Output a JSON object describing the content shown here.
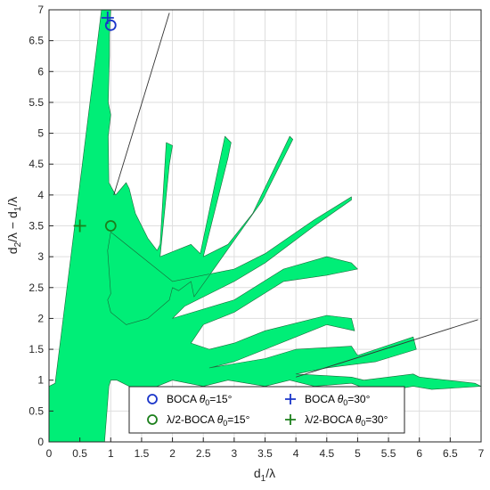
{
  "chart_data": {
    "type": "scatter",
    "xlabel": {
      "main": "d",
      "sub": "1",
      "tail": "/λ"
    },
    "ylabel": {
      "p1": "d",
      "s1": "2",
      "p2": "/λ − d",
      "s2": "1",
      "p3": "/λ"
    },
    "xlim": [
      0,
      7
    ],
    "ylim": [
      0,
      7
    ],
    "xticks": [
      "0",
      "0.5",
      "1",
      "1.5",
      "2",
      "2.5",
      "3",
      "3.5",
      "4",
      "4.5",
      "5",
      "5.5",
      "6",
      "6.5",
      "7"
    ],
    "yticks": [
      "0",
      "0.5",
      "1",
      "1.5",
      "2",
      "2.5",
      "3",
      "3.5",
      "4",
      "4.5",
      "5",
      "5.5",
      "6",
      "6.5",
      "7"
    ],
    "grid": true,
    "region_color": "#00ee77",
    "region_edge_color": "#1a6b3a",
    "feasible_region": [
      [
        0,
        0
      ],
      [
        0,
        0.9
      ],
      [
        0.1,
        0.95
      ],
      [
        0.85,
        7
      ],
      [
        1.0,
        7
      ],
      [
        0.98,
        6.6
      ],
      [
        0.98,
        6.25
      ],
      [
        0.97,
        5.9
      ],
      [
        0.96,
        5.5
      ],
      [
        1.0,
        5.3
      ],
      [
        0.96,
        4.95
      ],
      [
        0.97,
        4.2
      ],
      [
        1.08,
        4.0
      ],
      [
        1.25,
        4.2
      ],
      [
        1.3,
        4.1
      ],
      [
        1.35,
        3.9
      ],
      [
        1.4,
        3.7
      ],
      [
        1.6,
        3.3
      ],
      [
        1.75,
        3.1
      ],
      [
        1.8,
        3.2
      ],
      [
        1.9,
        4.85
      ],
      [
        2.0,
        4.8
      ],
      [
        1.95,
        4.5
      ],
      [
        1.8,
        3.0
      ],
      [
        2.3,
        3.2
      ],
      [
        2.45,
        3.05
      ],
      [
        2.85,
        4.95
      ],
      [
        2.95,
        4.85
      ],
      [
        2.9,
        4.6
      ],
      [
        2.5,
        3.0
      ],
      [
        2.9,
        3.2
      ],
      [
        3.3,
        3.7
      ],
      [
        3.9,
        4.95
      ],
      [
        3.95,
        4.9
      ],
      [
        3.45,
        3.9
      ],
      [
        2.6,
        2.7
      ],
      [
        2.35,
        2.35
      ],
      [
        2.3,
        2.6
      ],
      [
        2.1,
        2.45
      ],
      [
        2.0,
        2.5
      ],
      [
        1.95,
        2.3
      ],
      [
        1.6,
        2.0
      ],
      [
        1.25,
        1.9
      ],
      [
        1.0,
        2.1
      ],
      [
        0.95,
        2.3
      ],
      [
        1.0,
        2.4
      ],
      [
        0.95,
        3.1
      ],
      [
        1.0,
        3.4
      ],
      [
        2.0,
        2.6
      ],
      [
        3.0,
        2.8
      ],
      [
        3.5,
        3.05
      ],
      [
        4.3,
        3.6
      ],
      [
        4.9,
        3.97
      ],
      [
        4.9,
        3.92
      ],
      [
        4.3,
        3.5
      ],
      [
        3.5,
        2.9
      ],
      [
        3.0,
        2.6
      ],
      [
        2.2,
        2.2
      ],
      [
        2.0,
        2.0
      ],
      [
        3.0,
        2.3
      ],
      [
        3.8,
        2.8
      ],
      [
        4.5,
        3.0
      ],
      [
        4.9,
        2.9
      ],
      [
        5.0,
        2.8
      ],
      [
        4.5,
        2.7
      ],
      [
        3.8,
        2.6
      ],
      [
        3.0,
        2.1
      ],
      [
        2.5,
        1.9
      ],
      [
        2.3,
        1.6
      ],
      [
        2.6,
        1.5
      ],
      [
        3.0,
        1.6
      ],
      [
        3.5,
        1.8
      ],
      [
        4.5,
        2.05
      ],
      [
        4.9,
        2.0
      ],
      [
        4.95,
        1.8
      ],
      [
        4.5,
        1.9
      ],
      [
        3.5,
        1.5
      ],
      [
        3.0,
        1.3
      ],
      [
        2.6,
        1.2
      ],
      [
        3.5,
        1.35
      ],
      [
        4.0,
        1.5
      ],
      [
        4.9,
        1.55
      ],
      [
        5.0,
        1.4
      ],
      [
        5.9,
        1.7
      ],
      [
        5.95,
        1.5
      ],
      [
        5.3,
        1.3
      ],
      [
        4.5,
        1.2
      ],
      [
        4.0,
        1.1
      ],
      [
        4.9,
        1.05
      ],
      [
        5.1,
        1.0
      ],
      [
        5.9,
        1.1
      ],
      [
        6.0,
        1.05
      ],
      [
        6.9,
        0.95
      ],
      [
        7.0,
        0.9
      ],
      [
        6.2,
        0.85
      ],
      [
        5.9,
        0.9
      ],
      [
        5.3,
        0.8
      ],
      [
        4.9,
        0.95
      ],
      [
        4.3,
        0.9
      ],
      [
        3.9,
        1.0
      ],
      [
        3.5,
        0.9
      ],
      [
        2.9,
        1.0
      ],
      [
        2.5,
        0.9
      ],
      [
        2.0,
        1.0
      ],
      [
        1.5,
        0.8
      ],
      [
        1.1,
        1.0
      ],
      [
        1.0,
        1.0
      ],
      [
        0.97,
        0.9
      ],
      [
        0.9,
        0
      ]
    ],
    "guide_lines": [
      {
        "x": [
          1.05,
          1.95
        ],
        "y": [
          4.0,
          6.95
        ]
      },
      {
        "x": [
          4.0,
          6.95
        ],
        "y": [
          1.05,
          1.98
        ]
      }
    ],
    "series": [
      {
        "name": "BOCA θ0=15°",
        "marker": "circle",
        "color": "#1a35c9",
        "points": [
          [
            1.0,
            6.75
          ]
        ]
      },
      {
        "name": "BOCA θ0=30°",
        "marker": "plus",
        "color": "#1a35c9",
        "points": [
          [
            0.95,
            6.87
          ]
        ]
      },
      {
        "name": "λ/2-BOCA θ0=15°",
        "marker": "circle",
        "color": "#1b7f1b",
        "points": [
          [
            1.0,
            3.5
          ]
        ]
      },
      {
        "name": "λ/2-BOCA θ0=30°",
        "marker": "plus",
        "color": "#1b7f1b",
        "points": [
          [
            0.5,
            3.5
          ]
        ]
      }
    ],
    "legend": {
      "position": "bottom-right",
      "entries": [
        {
          "prefix": "BOCA ",
          "sym": "θ",
          "sub": "0",
          "suffix": "=15°"
        },
        {
          "prefix": "BOCA ",
          "sym": "θ",
          "sub": "0",
          "suffix": "=30°"
        },
        {
          "prefix": "λ/2-BOCA ",
          "sym": "θ",
          "sub": "0",
          "suffix": "=15°"
        },
        {
          "prefix": "λ/2-BOCA ",
          "sym": "θ",
          "sub": "0",
          "suffix": "=30°"
        }
      ]
    }
  }
}
